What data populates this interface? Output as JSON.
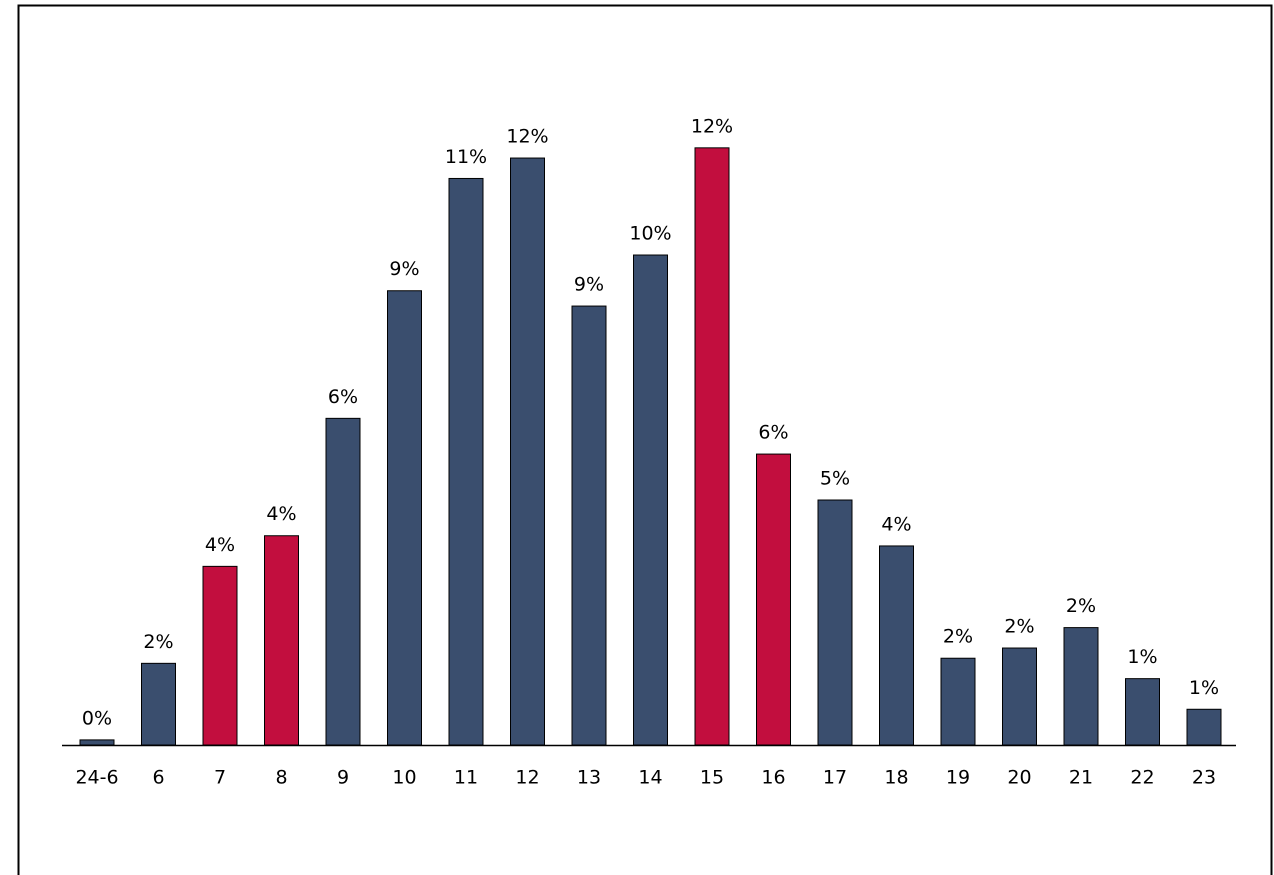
{
  "chart_data": {
    "type": "bar",
    "categories": [
      "24-6",
      "6",
      "7",
      "8",
      "9",
      "10",
      "11",
      "12",
      "13",
      "14",
      "15",
      "16",
      "17",
      "18",
      "19",
      "20",
      "21",
      "22",
      "23"
    ],
    "values": [
      0.1,
      1.6,
      3.5,
      4.1,
      6.4,
      8.9,
      11.1,
      11.5,
      8.6,
      9.6,
      11.7,
      5.7,
      4.8,
      3.9,
      1.7,
      1.9,
      2.3,
      1.3,
      0.7
    ],
    "value_labels": [
      "0%",
      "2%",
      "4%",
      "4%",
      "6%",
      "9%",
      "11%",
      "12%",
      "9%",
      "10%",
      "12%",
      "6%",
      "5%",
      "4%",
      "2%",
      "2%",
      "2%",
      "1%",
      "1%"
    ],
    "colors": [
      "#3a4e6e",
      "#3a4e6e",
      "#c20e3e",
      "#c20e3e",
      "#3a4e6e",
      "#3a4e6e",
      "#3a4e6e",
      "#3a4e6e",
      "#3a4e6e",
      "#3a4e6e",
      "#c20e3e",
      "#c20e3e",
      "#3a4e6e",
      "#3a4e6e",
      "#3a4e6e",
      "#3a4e6e",
      "#3a4e6e",
      "#3a4e6e",
      "#3a4e6e"
    ],
    "ylim": [
      0,
      12.5
    ]
  }
}
